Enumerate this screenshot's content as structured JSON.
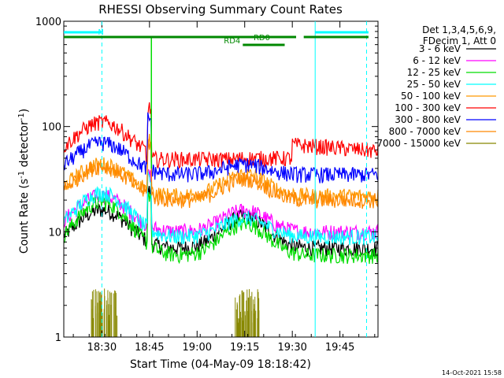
{
  "chart_data": {
    "type": "line",
    "title": "RHESSI Observing Summary Count Rates",
    "xlabel": "Start Time (04-May-09 18:18:42)",
    "ylabel_main": "Count Rate (s",
    "ylabel_sup1": "-1",
    "ylabel_mid": " detector",
    "ylabel_sup2": "-1",
    "ylabel_end": ")",
    "y_scale": "log",
    "ylim": [
      1,
      1000
    ],
    "xlim_minutes": [
      18.3,
      19.95
    ],
    "x_ticks": [
      {
        "value": 18.5,
        "label": "18:30"
      },
      {
        "value": 18.75,
        "label": "18:45"
      },
      {
        "value": 19.0,
        "label": "19:00"
      },
      {
        "value": 19.25,
        "label": "19:15"
      },
      {
        "value": 19.5,
        "label": "19:30"
      },
      {
        "value": 19.75,
        "label": "19:45"
      }
    ],
    "y_ticks": [
      {
        "value": 1,
        "label": "1"
      },
      {
        "value": 10,
        "label": "10"
      },
      {
        "value": 100,
        "label": "100"
      },
      {
        "value": 1000,
        "label": "1000"
      }
    ],
    "legend": {
      "placement": "right",
      "header_lines": [
        "Det 1,3,4,5,6,9,",
        "FDecim 1, Att 0"
      ]
    },
    "series": [
      {
        "name": "3 - 6 keV",
        "color": "#000000"
      },
      {
        "name": "6 - 12 keV",
        "color": "#ff00ff"
      },
      {
        "name": "12 - 25 keV",
        "color": "#00dd00"
      },
      {
        "name": "25 - 50 keV",
        "color": "#00ffff"
      },
      {
        "name": "50 - 100 keV",
        "color": "#ff9900"
      },
      {
        "name": "100 - 300 keV",
        "color": "#ff0000"
      },
      {
        "name": "300 - 800 keV",
        "color": "#0000ff"
      },
      {
        "name": "800 - 7000 keV",
        "color": "#ff8800"
      },
      {
        "name": "7000 - 15000 keV",
        "color": "#888800"
      }
    ],
    "bars": [
      {
        "label": "N",
        "color": "#00ffff",
        "start": 18.3,
        "end": 18.5
      },
      {
        "label": "",
        "color": "#00ffff",
        "start": 19.62,
        "end": 19.9
      },
      {
        "label": "RD0",
        "color": "#008800",
        "start": 18.3,
        "end": 19.52
      },
      {
        "label": "",
        "color": "#008800",
        "start": 19.56,
        "end": 19.9
      },
      {
        "label": "RD4",
        "color": "#008800",
        "start": 19.24,
        "end": 19.46
      }
    ],
    "vlines_solid": [
      19.62
    ],
    "vlines_dashed": [
      18.5,
      19.89
    ],
    "footer_date": "14-Oct-2021 15:58"
  }
}
